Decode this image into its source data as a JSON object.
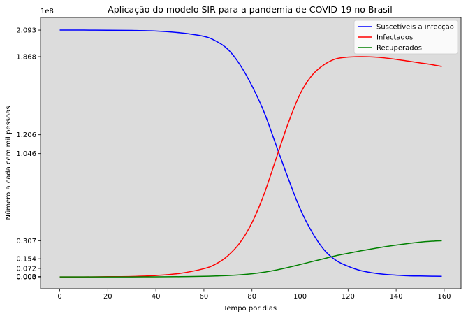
{
  "chart_data": {
    "type": "line",
    "title": "Aplicação do modelo SIR para a pandemia de COVID-19 no Brasil",
    "xlabel": "Tempo por dias",
    "ylabel": "Número a cada cem mil pessoas",
    "y_offset_text": "1e8",
    "xlim": [
      -8,
      167
    ],
    "ylim": [
      -0.1,
      2.2
    ],
    "grid": false,
    "background": "#dcdcdc",
    "legend_position": "top-right",
    "x_ticks": [
      0,
      20,
      40,
      60,
      80,
      100,
      120,
      140,
      160
    ],
    "y_ticks": [
      0.0,
      0.003,
      0.072,
      0.154,
      0.307,
      1.046,
      1.206,
      1.868,
      2.093
    ],
    "y_tick_labels": [
      "0.000",
      "0.003",
      "0.072",
      "0.154",
      "0.307",
      "1.046",
      "1.206",
      "1.868",
      "2.093"
    ],
    "x": [
      0,
      10,
      20,
      30,
      40,
      50,
      60,
      65,
      70,
      75,
      80,
      85,
      90,
      95,
      100,
      105,
      110,
      115,
      120,
      125,
      130,
      135,
      140,
      145,
      150,
      155,
      159
    ],
    "series": [
      {
        "name": "Suscetíveis a infecção",
        "color": "#0000ff",
        "values": [
          2.093,
          2.093,
          2.092,
          2.09,
          2.085,
          2.07,
          2.04,
          2.0,
          1.93,
          1.8,
          1.62,
          1.4,
          1.12,
          0.84,
          0.58,
          0.38,
          0.23,
          0.14,
          0.09,
          0.055,
          0.035,
          0.022,
          0.015,
          0.01,
          0.008,
          0.006,
          0.005
        ]
      },
      {
        "name": "Infectados",
        "color": "#ff0000",
        "values": [
          0.0,
          0.0,
          0.002,
          0.004,
          0.012,
          0.03,
          0.07,
          0.11,
          0.18,
          0.29,
          0.46,
          0.7,
          1.0,
          1.3,
          1.55,
          1.71,
          1.8,
          1.85,
          1.864,
          1.868,
          1.866,
          1.858,
          1.845,
          1.83,
          1.815,
          1.8,
          1.785
        ]
      },
      {
        "name": "Recuperados",
        "color": "#008000",
        "values": [
          0.0,
          0.0,
          0.0,
          0.0,
          0.001,
          0.002,
          0.005,
          0.008,
          0.012,
          0.018,
          0.027,
          0.04,
          0.058,
          0.08,
          0.105,
          0.13,
          0.155,
          0.18,
          0.2,
          0.22,
          0.238,
          0.255,
          0.27,
          0.283,
          0.295,
          0.303,
          0.307
        ]
      }
    ]
  }
}
